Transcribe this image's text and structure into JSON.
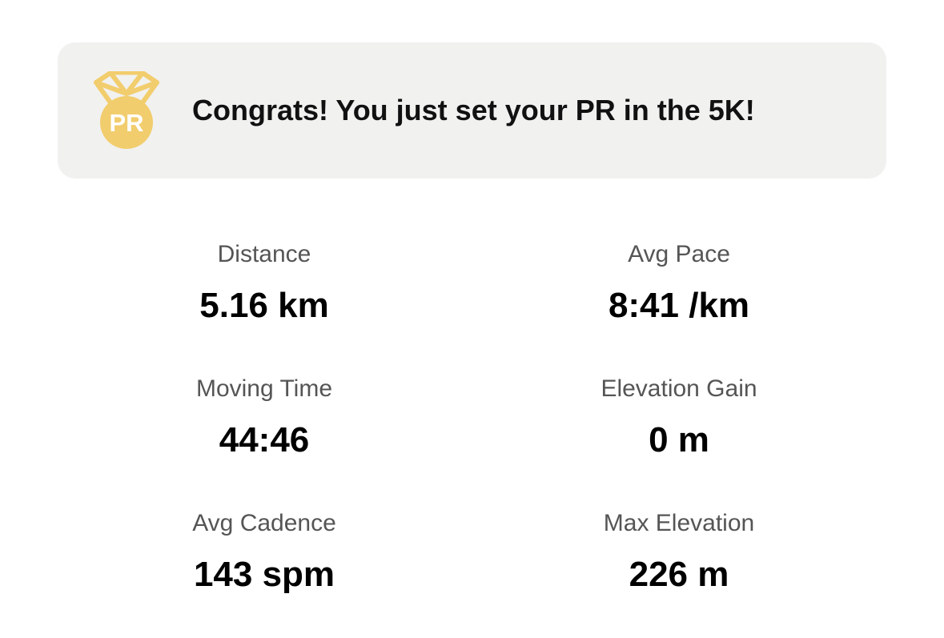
{
  "banner": {
    "icon": "pr-medal-icon",
    "medal_text": "PR",
    "medal_color": "#f2cd6d",
    "message": "Congrats! You just set your PR in the 5K!"
  },
  "stats": {
    "distance": {
      "label": "Distance",
      "value": "5.16 km"
    },
    "avg_pace": {
      "label": "Avg Pace",
      "value": "8:41 /km"
    },
    "moving_time": {
      "label": "Moving Time",
      "value": "44:46"
    },
    "elevation_gain": {
      "label": "Elevation Gain",
      "value": "0 m"
    },
    "avg_cadence": {
      "label": "Avg Cadence",
      "value": "143 spm"
    },
    "max_elevation": {
      "label": "Max Elevation",
      "value": "226 m"
    }
  }
}
